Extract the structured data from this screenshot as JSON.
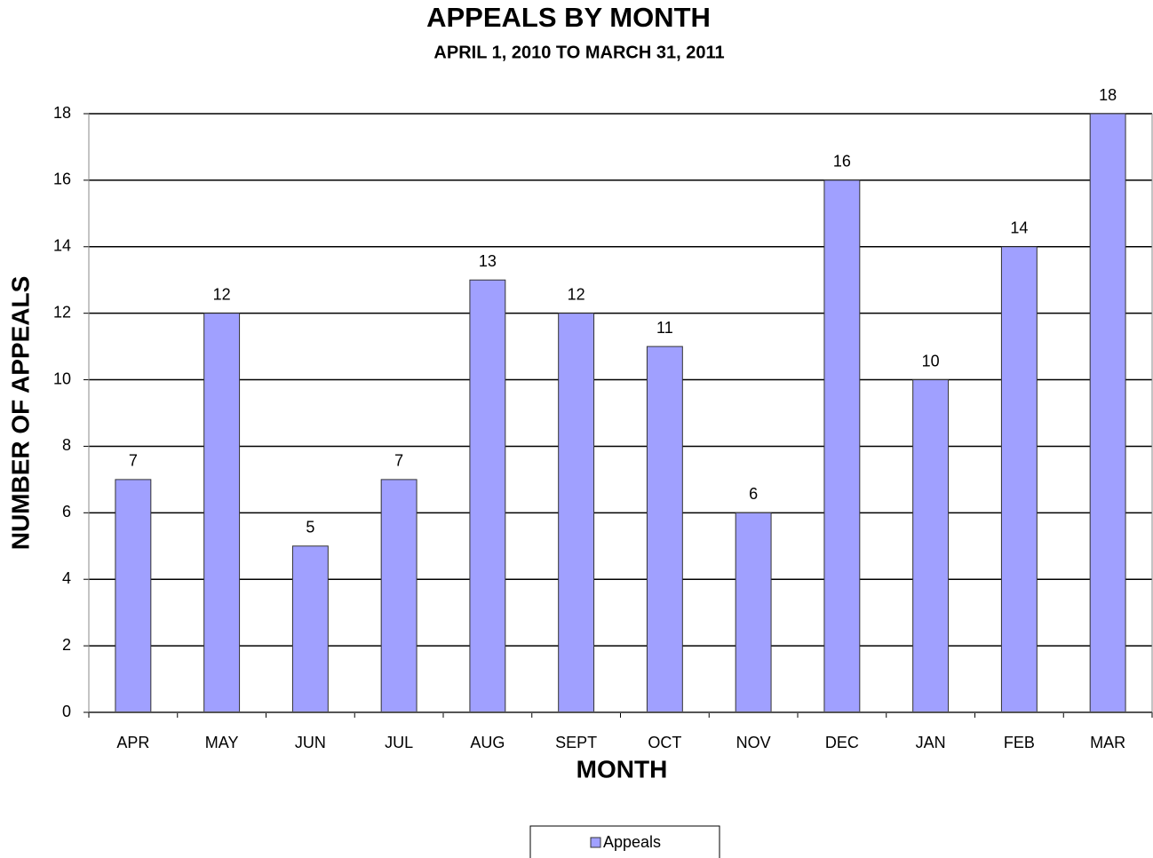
{
  "chart_data": {
    "type": "bar",
    "title": "APPEALS BY MONTH",
    "subtitle": "APRIL 1, 2010 TO MARCH 31, 2011",
    "x_label": "MONTH",
    "y_label": "NUMBER OF APPEALS",
    "categories": [
      "APR",
      "MAY",
      "JUN",
      "JUL",
      "AUG",
      "SEPT",
      "OCT",
      "NOV",
      "DEC",
      "JAN",
      "FEB",
      "MAR"
    ],
    "series": [
      {
        "name": "Appeals",
        "color": "#a0a0ff",
        "values": [
          7,
          12,
          5,
          7,
          13,
          12,
          11,
          6,
          16,
          10,
          14,
          18
        ]
      }
    ],
    "ylim": [
      0,
      18
    ],
    "yticks": [
      0,
      2,
      4,
      6,
      8,
      10,
      12,
      14,
      16,
      18
    ],
    "grid": true,
    "legend": "bottom"
  }
}
